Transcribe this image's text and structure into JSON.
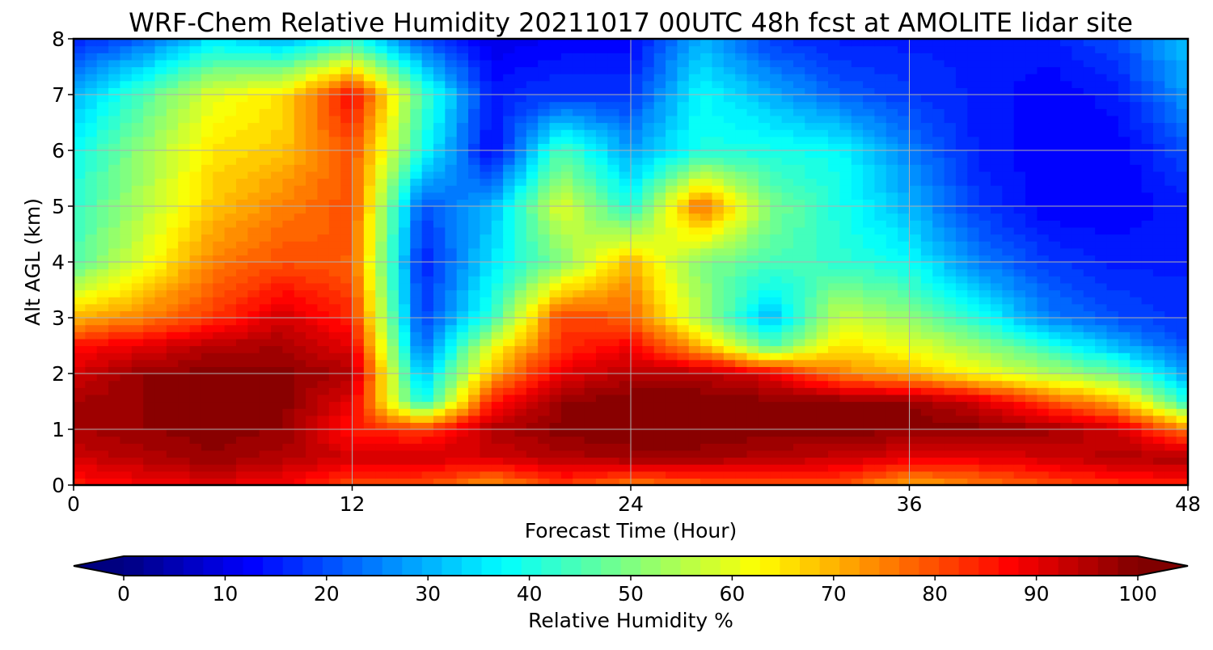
{
  "chart_data": {
    "type": "heatmap",
    "title": "WRF-Chem Relative Humidity 20211017 00UTC 48h fcst at AMOLITE lidar site",
    "xlabel": "Forecast Time (Hour)",
    "ylabel": "Alt AGL (km)",
    "xlim": [
      0,
      48
    ],
    "ylim": [
      0,
      8
    ],
    "x_ticks": [
      0,
      12,
      24,
      36,
      48
    ],
    "y_ticks": [
      0,
      1,
      2,
      3,
      4,
      5,
      6,
      7,
      8
    ],
    "grid": true,
    "colormap": "jet",
    "colorbar": {
      "label": "Relative Humidity %",
      "orientation": "horizontal",
      "location": "bottom",
      "extend": "both",
      "range": [
        0,
        100
      ],
      "ticks": [
        0,
        10,
        20,
        30,
        40,
        50,
        60,
        70,
        80,
        90,
        100
      ],
      "levels": 51
    },
    "x": [
      0,
      3,
      6,
      9,
      12,
      15,
      18,
      21,
      24,
      27,
      30,
      33,
      36,
      39,
      42,
      45,
      48
    ],
    "y": [
      0,
      0.5,
      1,
      1.5,
      2,
      2.5,
      3,
      4,
      5,
      6,
      7,
      8
    ],
    "z": [
      [
        85,
        88,
        90,
        88,
        80,
        80,
        72,
        82,
        75,
        78,
        80,
        80,
        70,
        75,
        80,
        83,
        85
      ],
      [
        92,
        95,
        98,
        95,
        92,
        92,
        92,
        95,
        97,
        97,
        95,
        93,
        90,
        90,
        92,
        95,
        96
      ],
      [
        96,
        98,
        99,
        98,
        85,
        82,
        95,
        99,
        100,
        100,
        99,
        99,
        99,
        99,
        97,
        92,
        75
      ],
      [
        96,
        98,
        100,
        99,
        90,
        38,
        85,
        98,
        100,
        100,
        99,
        99,
        98,
        92,
        80,
        70,
        40
      ],
      [
        92,
        98,
        99,
        99,
        95,
        30,
        70,
        90,
        95,
        95,
        90,
        75,
        70,
        62,
        55,
        48,
        28
      ],
      [
        86,
        90,
        95,
        96,
        90,
        22,
        60,
        83,
        88,
        70,
        45,
        65,
        60,
        52,
        42,
        30,
        20
      ],
      [
        70,
        75,
        82,
        92,
        84,
        18,
        42,
        82,
        78,
        55,
        30,
        58,
        52,
        40,
        25,
        20,
        17
      ],
      [
        45,
        60,
        75,
        80,
        78,
        15,
        35,
        50,
        70,
        50,
        45,
        42,
        38,
        25,
        18,
        15,
        15
      ],
      [
        42,
        55,
        68,
        75,
        80,
        20,
        30,
        60,
        40,
        78,
        50,
        40,
        30,
        18,
        12,
        12,
        15
      ],
      [
        38,
        52,
        65,
        68,
        80,
        40,
        12,
        45,
        28,
        40,
        40,
        38,
        25,
        15,
        12,
        12,
        20
      ],
      [
        30,
        45,
        60,
        65,
        88,
        45,
        15,
        18,
        18,
        38,
        30,
        22,
        18,
        15,
        12,
        15,
        28
      ],
      [
        15,
        22,
        35,
        30,
        40,
        20,
        10,
        12,
        12,
        30,
        18,
        15,
        15,
        15,
        15,
        20,
        32
      ]
    ]
  }
}
